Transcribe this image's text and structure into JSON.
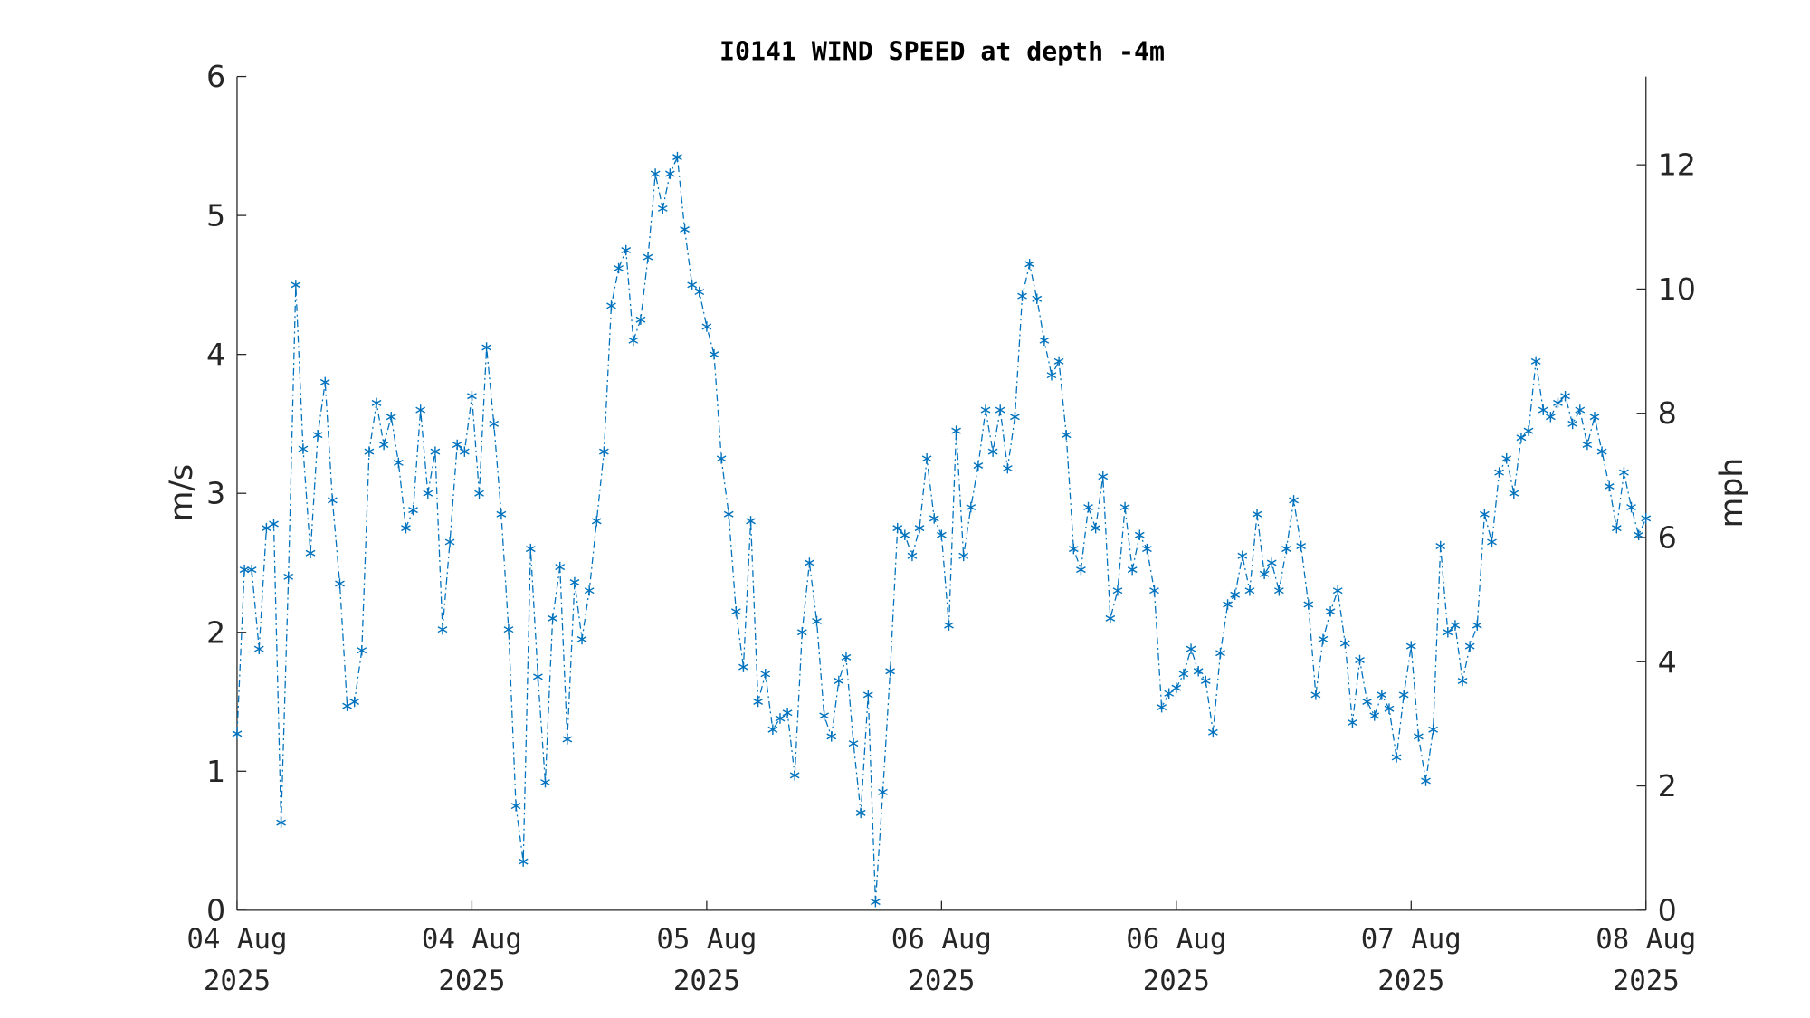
{
  "chart_data": {
    "type": "line",
    "title": "I0141 WIND SPEED at depth -4m",
    "ylabel": "m/s",
    "y2label": "mph",
    "color": "#0072bd",
    "marker": "*",
    "line_style": "dash-dot",
    "xlim": [
      0,
      96
    ],
    "xticks": [
      {
        "value": 0,
        "label": "04 Aug 2025"
      },
      {
        "value": 16,
        "label": "04 Aug 2025"
      },
      {
        "value": 32,
        "label": "05 Aug 2025"
      },
      {
        "value": 48,
        "label": "06 Aug 2025"
      },
      {
        "value": 64,
        "label": "06 Aug 2025"
      },
      {
        "value": 80,
        "label": "07 Aug 2025"
      },
      {
        "value": 96,
        "label": "08 Aug 2025"
      }
    ],
    "ylim": [
      0,
      6
    ],
    "yticks": [
      0,
      1,
      2,
      3,
      4,
      5,
      6
    ],
    "y2lim": [
      0,
      13.4216
    ],
    "y2ticks": [
      0,
      2,
      4,
      6,
      8,
      10,
      12
    ],
    "x": [
      0,
      0.5,
      1,
      1.5,
      2,
      2.5,
      3,
      3.5,
      4,
      4.5,
      5,
      5.5,
      6,
      6.5,
      7,
      7.5,
      8,
      8.5,
      9,
      9.5,
      10,
      10.5,
      11,
      11.5,
      12,
      12.5,
      13,
      13.5,
      14,
      14.5,
      15,
      15.5,
      16,
      16.5,
      17,
      17.5,
      18,
      18.5,
      19,
      19.5,
      20,
      20.5,
      21,
      21.5,
      22,
      22.5,
      23,
      23.5,
      24,
      24.5,
      25,
      25.5,
      26,
      26.5,
      27,
      27.5,
      28,
      28.5,
      29,
      29.5,
      30,
      30.5,
      31,
      31.5,
      32,
      32.5,
      33,
      33.5,
      34,
      34.5,
      35,
      35.5,
      36,
      36.5,
      37,
      37.5,
      38,
      38.5,
      39,
      39.5,
      40,
      40.5,
      41,
      41.5,
      42,
      42.5,
      43,
      43.5,
      44,
      44.5,
      45,
      45.5,
      46,
      46.5,
      47,
      47.5,
      48,
      48.5,
      49,
      49.5,
      50,
      50.5,
      51,
      51.5,
      52,
      52.5,
      53,
      53.5,
      54,
      54.5,
      55,
      55.5,
      56,
      56.5,
      57,
      57.5,
      58,
      58.5,
      59,
      59.5,
      60,
      60.5,
      61,
      61.5,
      62,
      62.5,
      63,
      63.5,
      64,
      64.5,
      65,
      65.5,
      66,
      66.5,
      67,
      67.5,
      68,
      68.5,
      69,
      69.5,
      70,
      70.5,
      71,
      71.5,
      72,
      72.5,
      73,
      73.5,
      74,
      74.5,
      75,
      75.5,
      76,
      76.5,
      77,
      77.5,
      78,
      78.5,
      79,
      79.5,
      80,
      80.5,
      81,
      81.5,
      82,
      82.5,
      83,
      83.5,
      84,
      84.5,
      85,
      85.5,
      86,
      86.5,
      87,
      87.5,
      88,
      88.5,
      89,
      89.5,
      90,
      90.5,
      91,
      91.5,
      92,
      92.5,
      93,
      93.5,
      94,
      94.5,
      95,
      95.5,
      96
    ],
    "values": [
      1.27,
      2.45,
      2.45,
      1.88,
      2.75,
      2.78,
      0.63,
      2.4,
      4.5,
      3.32,
      2.57,
      3.42,
      3.8,
      2.95,
      2.35,
      1.47,
      1.5,
      1.87,
      3.3,
      3.65,
      3.35,
      3.55,
      3.22,
      2.75,
      2.88,
      3.6,
      3.0,
      3.3,
      2.02,
      2.65,
      3.35,
      3.3,
      3.7,
      3.0,
      4.05,
      3.5,
      2.85,
      2.02,
      0.75,
      0.35,
      2.6,
      1.68,
      0.92,
      2.1,
      2.47,
      1.23,
      2.36,
      1.95,
      2.3,
      2.8,
      3.3,
      4.35,
      4.62,
      4.75,
      4.1,
      4.25,
      4.7,
      5.3,
      5.05,
      5.3,
      5.42,
      4.9,
      4.5,
      4.45,
      4.2,
      4.0,
      3.25,
      2.85,
      2.15,
      1.75,
      2.8,
      1.5,
      1.7,
      1.3,
      1.38,
      1.42,
      0.97,
      2.0,
      2.5,
      2.08,
      1.4,
      1.25,
      1.65,
      1.82,
      1.2,
      0.7,
      1.55,
      0.06,
      0.85,
      1.72,
      2.75,
      2.7,
      2.55,
      2.75,
      3.25,
      2.82,
      2.7,
      2.05,
      3.45,
      2.55,
      2.9,
      3.2,
      3.6,
      3.3,
      3.6,
      3.18,
      3.55,
      4.42,
      4.65,
      4.4,
      4.1,
      3.85,
      3.95,
      3.42,
      2.6,
      2.45,
      2.9,
      2.75,
      3.12,
      2.1,
      2.3,
      2.9,
      2.45,
      2.7,
      2.6,
      2.3,
      1.46,
      1.56,
      1.6,
      1.7,
      1.88,
      1.72,
      1.65,
      1.28,
      1.85,
      2.2,
      2.27,
      2.55,
      2.3,
      2.85,
      2.42,
      2.5,
      2.3,
      2.6,
      2.95,
      2.62,
      2.2,
      1.55,
      1.95,
      2.15,
      2.3,
      1.92,
      1.35,
      1.8,
      1.5,
      1.4,
      1.55,
      1.45,
      1.1,
      1.55,
      1.9,
      1.25,
      0.93,
      1.3,
      2.62,
      2.0,
      2.05,
      1.65,
      1.9,
      2.05,
      2.85,
      2.65,
      3.15,
      3.25,
      3.0,
      3.4,
      3.45,
      3.95,
      3.6,
      3.55,
      3.65,
      3.7,
      3.5,
      3.6,
      3.35,
      3.55,
      3.3,
      3.05,
      2.75,
      3.15,
      2.9,
      2.7,
      2.82
    ]
  }
}
